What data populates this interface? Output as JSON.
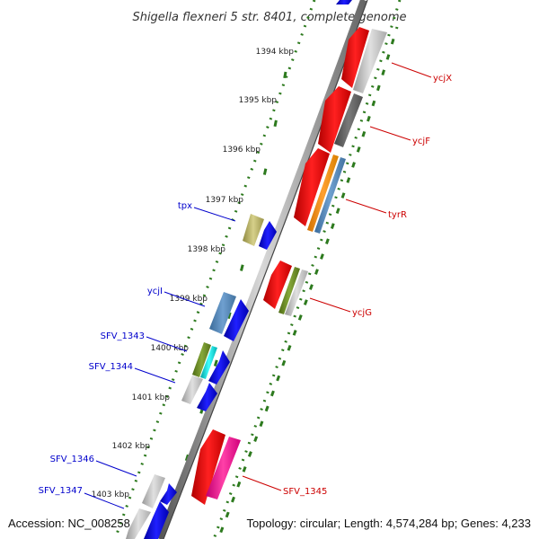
{
  "title": "Shigella flexneri 5 str. 8401, complete genome",
  "accession": "Accession: NC_008258",
  "summary": "Topology: circular; Length: 4,574,284 bp; Genes: 4,233",
  "colors": {
    "forward_label": "#cc0000",
    "reverse_label": "#0000cc",
    "tick_green": "#2d7a1e",
    "backbone": "#888888"
  },
  "ruler": [
    {
      "label": "1394 kbp"
    },
    {
      "label": "1395 kbp"
    },
    {
      "label": "1396 kbp"
    },
    {
      "label": "1397 kbp"
    },
    {
      "label": "1398 kbp"
    },
    {
      "label": "1399 kbp"
    },
    {
      "label": "1400 kbp"
    },
    {
      "label": "1401 kbp"
    },
    {
      "label": "1402 kbp"
    },
    {
      "label": "1403 kbp"
    }
  ],
  "forward_labels": [
    {
      "name": "ycjX"
    },
    {
      "name": "ycjF"
    },
    {
      "name": "tyrR"
    },
    {
      "name": "ycjG"
    },
    {
      "name": "SFV_1345"
    }
  ],
  "reverse_labels": [
    {
      "name": "tpx"
    },
    {
      "name": "ycjI"
    },
    {
      "name": "SFV_1343"
    },
    {
      "name": "SFV_1344"
    },
    {
      "name": "SFV_1346"
    },
    {
      "name": "SFV_1347"
    }
  ]
}
